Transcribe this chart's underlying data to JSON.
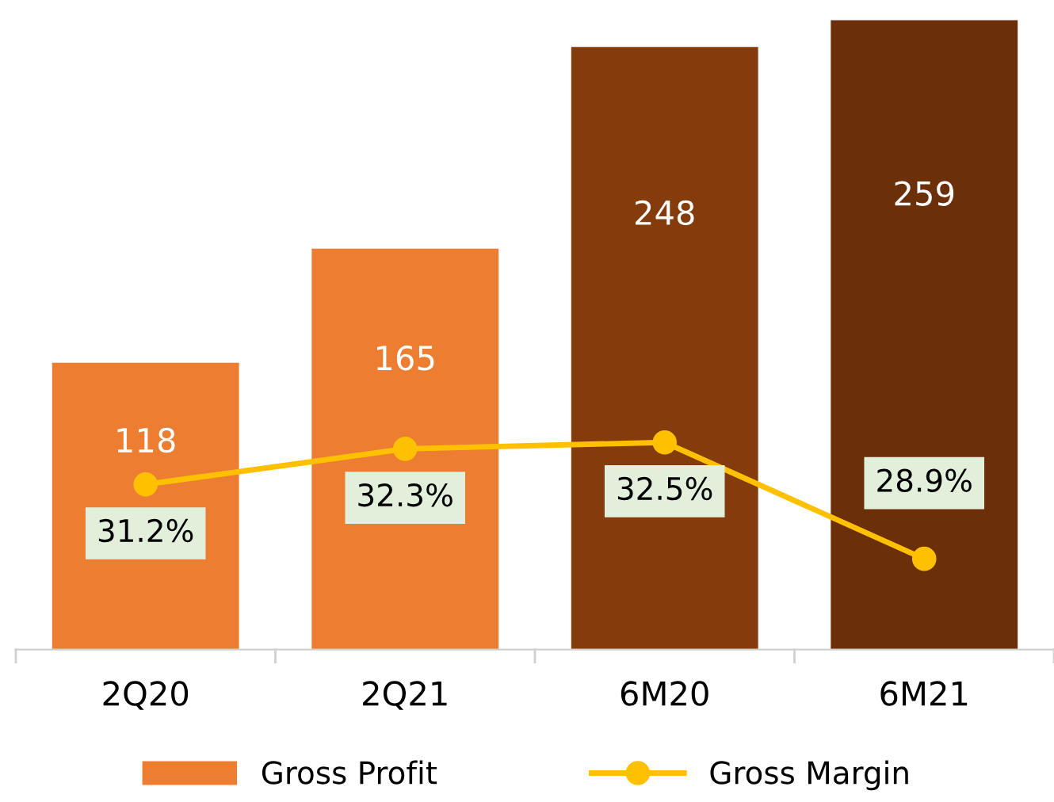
{
  "chart_data": {
    "type": "bar",
    "categories": [
      "2Q20",
      "2Q21",
      "6M20",
      "6M21"
    ],
    "tick_labels": "x",
    "legend": "bottom",
    "grid": false,
    "series": [
      {
        "name": "Gross Profit",
        "color": "#ed7d31",
        "colors": [
          "#ed7d31",
          "#ed7d31",
          "#843c0c",
          "#6b2f0a"
        ],
        "values": [
          118,
          165,
          248,
          259
        ],
        "data_labels": true
      },
      {
        "name": "Gross Margin",
        "type": "line",
        "axis": "y2",
        "color": "#ffc000",
        "marker": "circle",
        "line_style": "solid",
        "values": [
          31.2,
          32.3,
          32.5,
          28.9
        ],
        "value_labels": [
          "31.2%",
          "32.3%",
          "32.5%",
          "28.9%"
        ]
      }
    ]
  }
}
